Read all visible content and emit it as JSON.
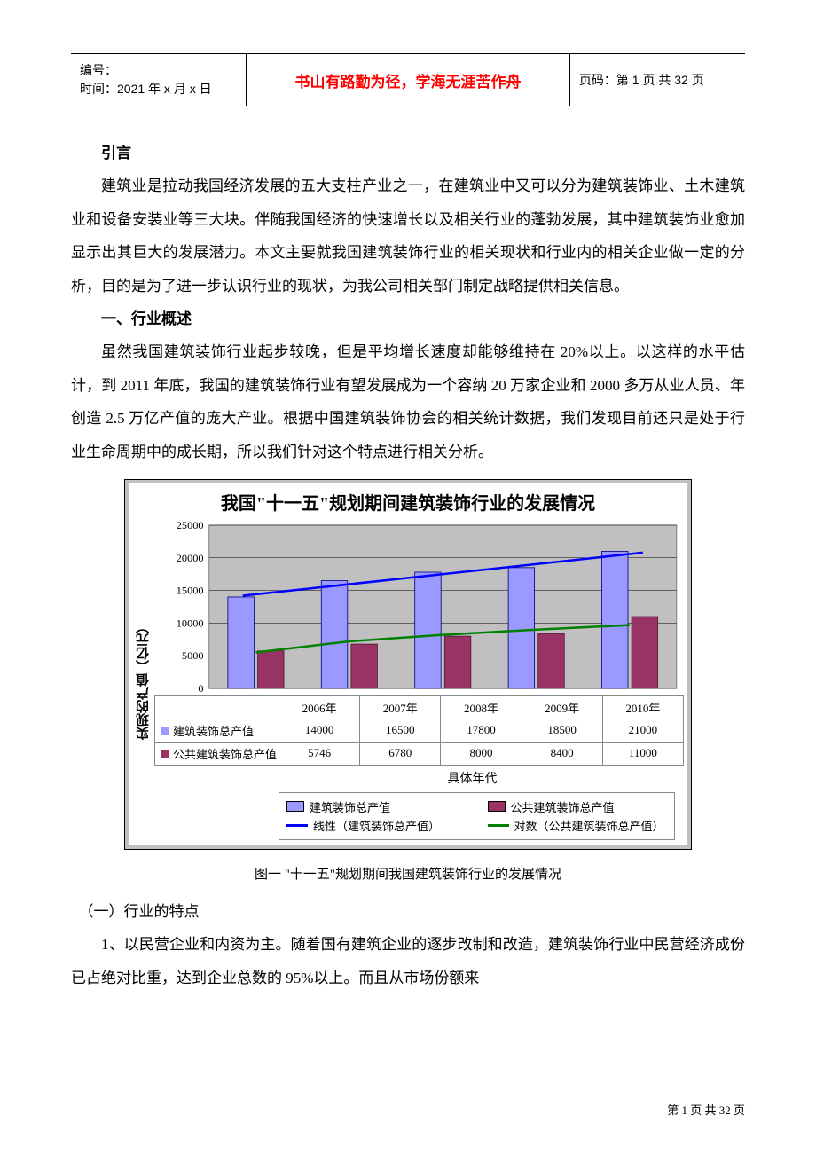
{
  "header": {
    "id_label": "编号：",
    "time_label": "时间：2021 年 x 月 x 日",
    "motto": "书山有路勤为径，学海无涯苦作舟",
    "page_label": "页码：第 1 页 共 32 页"
  },
  "intro": {
    "h": "引言",
    "p": "建筑业是拉动我国经济发展的五大支柱产业之一，在建筑业中又可以分为建筑装饰业、土木建筑业和设备安装业等三大块。伴随我国经济的快速增长以及相关行业的蓬勃发展，其中建筑装饰业愈加显示出其巨大的发展潜力。本文主要就我国建筑装饰行业的相关现状和行业内的相关企业做一定的分析，目的是为了进一步认识行业的现状，为我公司相关部门制定战略提供相关信息。"
  },
  "sec1": {
    "h": "一、行业概述",
    "p": "虽然我国建筑装饰行业起步较晚，但是平均增长速度却能够维持在 20%以上。以这样的水平估计，到 2011 年底，我国的建筑装饰行业有望发展成为一个容纳 20 万家企业和 2000 多万从业人员、年创造 2.5 万亿产值的庞大产业。根据中国建筑装饰协会的相关统计数据，我们发现目前还只是处于行业生命周期中的成长期，所以我们针对这个特点进行相关分析。"
  },
  "chart": {
    "title": "我国\"十一五\"规划期间建筑装饰行业的发展情况",
    "ylabel": "实现的产值（亿元）",
    "xlabel": "具体年代",
    "categories": [
      "2006年",
      "2007年",
      "2008年",
      "2009年",
      "2010年"
    ],
    "series": [
      {
        "name": "建筑装饰总产值",
        "values": [
          14000,
          16500,
          17800,
          18500,
          21000
        ],
        "color": "#9999ff",
        "border": "#000080"
      },
      {
        "name": "公共建筑装饰总产值",
        "values": [
          5746,
          6780,
          8000,
          8400,
          11000
        ],
        "color": "#993366",
        "border": "#4d1a33"
      }
    ],
    "trendlines": [
      {
        "name": "线性（建筑装饰总产值）",
        "color": "#0000ff",
        "points_y": [
          14200,
          20800
        ]
      },
      {
        "name": "对数（公共建筑装饰总产值）",
        "color": "#008000",
        "points_y": [
          5500,
          7200,
          8200,
          9000,
          9700
        ]
      }
    ],
    "yticks": [
      0,
      5000,
      10000,
      15000,
      20000,
      25000
    ],
    "ylim": [
      0,
      25000
    ],
    "plot_bg": "#c0c0c0",
    "grid_color": "#808080",
    "legend": {
      "items": [
        {
          "swatch": "#9999ff",
          "type": "box",
          "label": "建筑装饰总产值"
        },
        {
          "swatch": "#993366",
          "type": "box",
          "label": "公共建筑装饰总产值"
        },
        {
          "swatch": "#0000ff",
          "type": "line",
          "label": "线性（建筑装饰总产值）"
        },
        {
          "swatch": "#008000",
          "type": "line",
          "label": "对数（公共建筑装饰总产值）"
        }
      ]
    },
    "row_head_prefix": [
      "□",
      "■"
    ]
  },
  "caption": "图一 \"十一五\"规划期间我国建筑装饰行业的发展情况",
  "sub1": {
    "h": "（一）行业的特点",
    "p": "1、以民营企业和内资为主。随着国有建筑企业的逐步改制和改造，建筑装饰行业中民营经济成份已占绝对比重，达到企业总数的 95%以上。而且从市场份额来"
  },
  "footer": "第 1 页 共 32 页"
}
